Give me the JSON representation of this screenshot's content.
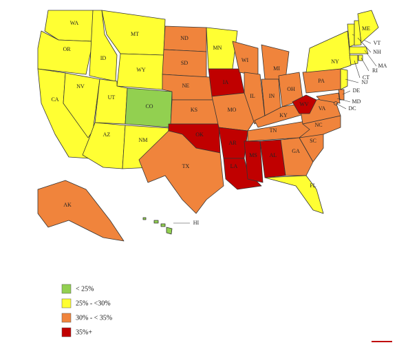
{
  "legend": [
    {
      "label": "< 25%",
      "color": "#92d050"
    },
    {
      "label": "25% - <30%",
      "color": "#ffff33"
    },
    {
      "label": "30% - < 35%",
      "color": "#f0843c"
    },
    {
      "label": "35%+",
      "color": "#c00000"
    }
  ],
  "states": [
    {
      "name": "WA",
      "category": 1
    },
    {
      "name": "OR",
      "category": 1
    },
    {
      "name": "CA",
      "category": 1
    },
    {
      "name": "NV",
      "category": 1
    },
    {
      "name": "ID",
      "category": 1
    },
    {
      "name": "MT",
      "category": 1
    },
    {
      "name": "WY",
      "category": 1
    },
    {
      "name": "UT",
      "category": 1
    },
    {
      "name": "CO",
      "category": 0
    },
    {
      "name": "AZ",
      "category": 1
    },
    {
      "name": "NM",
      "category": 1
    },
    {
      "name": "ND",
      "category": 2
    },
    {
      "name": "SD",
      "category": 2
    },
    {
      "name": "NE",
      "category": 2
    },
    {
      "name": "KS",
      "category": 2
    },
    {
      "name": "OK",
      "category": 3
    },
    {
      "name": "TX",
      "category": 2
    },
    {
      "name": "MN",
      "category": 1
    },
    {
      "name": "IA",
      "category": 3
    },
    {
      "name": "MO",
      "category": 2
    },
    {
      "name": "AR",
      "category": 3
    },
    {
      "name": "LA",
      "category": 3
    },
    {
      "name": "WI",
      "category": 2
    },
    {
      "name": "IL",
      "category": 2
    },
    {
      "name": "MI",
      "category": 2
    },
    {
      "name": "IN",
      "category": 2
    },
    {
      "name": "OH",
      "category": 2
    },
    {
      "name": "KY",
      "category": 2
    },
    {
      "name": "TN",
      "category": 2
    },
    {
      "name": "MS",
      "category": 3
    },
    {
      "name": "AL",
      "category": 3
    },
    {
      "name": "GA",
      "category": 2
    },
    {
      "name": "FL",
      "category": 1
    },
    {
      "name": "SC",
      "category": 2
    },
    {
      "name": "NC",
      "category": 2
    },
    {
      "name": "VA",
      "category": 2
    },
    {
      "name": "WV",
      "category": 3
    },
    {
      "name": "PA",
      "category": 2
    },
    {
      "name": "NY",
      "category": 1
    },
    {
      "name": "VT",
      "category": 1
    },
    {
      "name": "NH",
      "category": 1
    },
    {
      "name": "ME",
      "category": 1
    },
    {
      "name": "MA",
      "category": 1
    },
    {
      "name": "CT",
      "category": 1
    },
    {
      "name": "RI",
      "category": 1
    },
    {
      "name": "NJ",
      "category": 1
    },
    {
      "name": "DE",
      "category": 2
    },
    {
      "name": "MD",
      "category": 2
    },
    {
      "name": "DC",
      "category": 2
    },
    {
      "name": "AK",
      "category": 2
    },
    {
      "name": "HI",
      "category": 0
    }
  ]
}
